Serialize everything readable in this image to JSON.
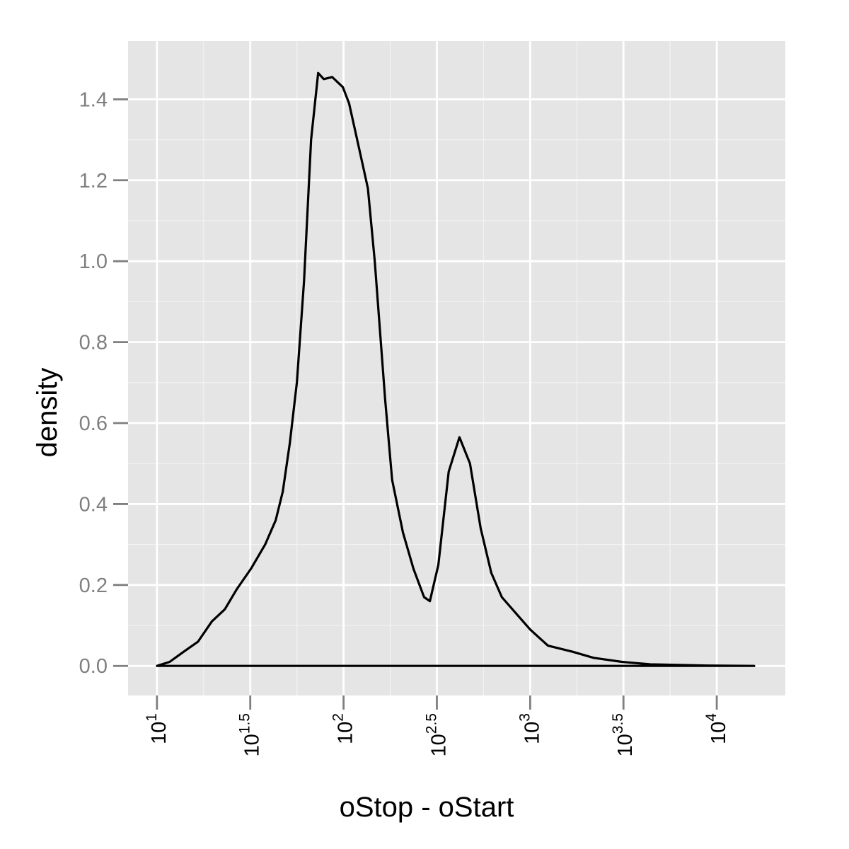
{
  "chart_data": {
    "type": "density",
    "x_label": "oStop - oStart",
    "y_label": "density",
    "log_x": true,
    "grid": true,
    "color": "#000000",
    "xlim": [
      7.0,
      23300
    ],
    "ylim": [
      -0.073,
      1.544
    ],
    "xticks": [
      {
        "value": 10,
        "label": "10",
        "exponent": "1"
      },
      {
        "value": 31.62,
        "label": "10",
        "exponent": "1.5"
      },
      {
        "value": 100,
        "label": "10",
        "exponent": "2"
      },
      {
        "value": 316.2,
        "label": "10",
        "exponent": "2.5"
      },
      {
        "value": 1000,
        "label": "10",
        "exponent": "3"
      },
      {
        "value": 3162,
        "label": "10",
        "exponent": "3.5"
      },
      {
        "value": 10000,
        "label": "10",
        "exponent": "4"
      }
    ],
    "yticks": [
      {
        "value": 0,
        "label": "0.0"
      },
      0.2,
      0.4,
      0.6,
      0.8,
      {
        "value": 1,
        "label": "1.0"
      },
      1.2,
      1.4
    ],
    "x": [
      10,
      11.7,
      13.9,
      16.6,
      19.7,
      23.1,
      26.8,
      31.9,
      38.0,
      43.3,
      47.2,
      51.5,
      56.2,
      61.4,
      67.0,
      73.1,
      78.3,
      86.9,
      99.1,
      107,
      117,
      135,
      147,
      167,
      182,
      208,
      237,
      270,
      290,
      322,
      366,
      418,
      476,
      543,
      619,
      705,
      839,
      1000,
      1245,
      1687,
      2188,
      3105,
      4406,
      8851,
      15849
    ],
    "values": [
      0,
      0.01,
      0.035,
      0.06,
      0.11,
      0.14,
      0.19,
      0.24,
      0.3,
      0.36,
      0.43,
      0.55,
      0.7,
      0.95,
      1.3,
      1.465,
      1.45,
      1.455,
      1.43,
      1.39,
      1.31,
      1.18,
      1.0,
      0.66,
      0.46,
      0.33,
      0.24,
      0.17,
      0.16,
      0.25,
      0.48,
      0.565,
      0.5,
      0.34,
      0.23,
      0.17,
      0.13,
      0.09,
      0.05,
      0.035,
      0.02,
      0.01,
      0.004,
      0.001,
      0
    ]
  }
}
